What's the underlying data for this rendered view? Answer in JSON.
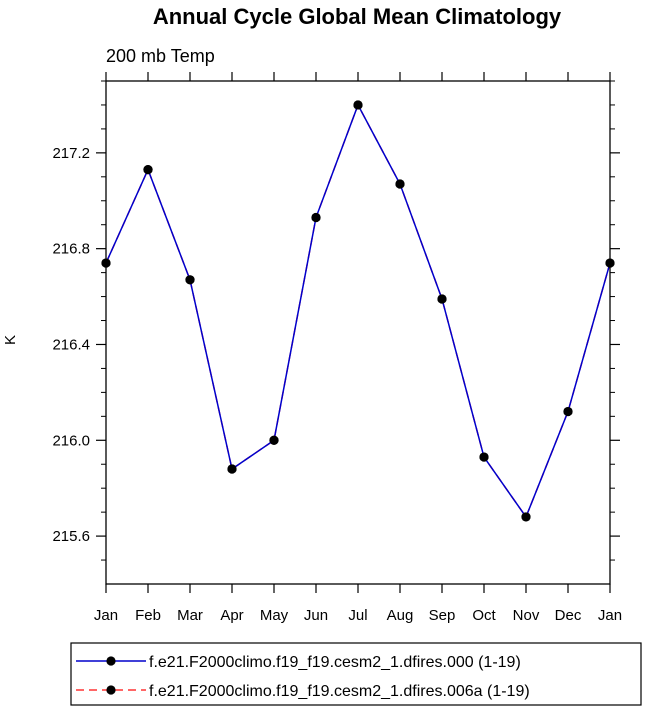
{
  "chart_data": {
    "type": "line",
    "title": "Annual Cycle Global Mean Climatology",
    "subtitle": "200 mb Temp",
    "xlabel": "",
    "ylabel": "K",
    "categories": [
      "Jan",
      "Feb",
      "Mar",
      "Apr",
      "May",
      "Jun",
      "Jul",
      "Aug",
      "Sep",
      "Oct",
      "Nov",
      "Dec",
      "Jan"
    ],
    "ylim": [
      215.4,
      217.5
    ],
    "yticks": [
      "215.6",
      "216.0",
      "216.4",
      "216.8",
      "217.2"
    ],
    "series": [
      {
        "name": "f.e21.F2000climo.f19_f19.cesm2_1.dfires.000 (1-19)",
        "color": "#0000cc",
        "dash": "solid",
        "values": [
          216.74,
          217.13,
          216.67,
          215.88,
          216.0,
          216.93,
          217.4,
          217.07,
          216.59,
          215.93,
          215.68,
          216.12,
          216.74
        ]
      },
      {
        "name": "f.e21.F2000climo.f19_f19.cesm2_1.dfires.006a (1-19)",
        "color": "#ff3333",
        "dash": "dashed",
        "values": [
          216.74,
          217.13,
          216.67,
          215.88,
          216.0,
          216.93,
          217.4,
          217.07,
          216.59,
          215.93,
          215.68,
          216.12,
          216.74
        ]
      }
    ],
    "legend_position": "bottom"
  }
}
